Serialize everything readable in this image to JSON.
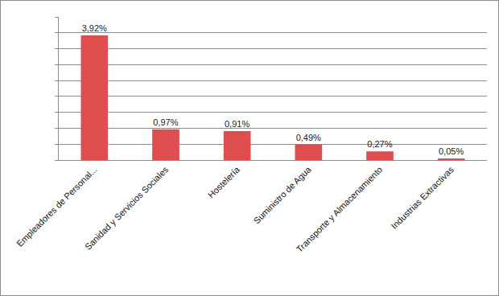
{
  "chart_data": {
    "type": "bar",
    "categories": [
      "Empleadores de Personal...",
      "Sanidad y Servicios Sociales",
      "Hostelería",
      "Suministro de Agua",
      "Transporte y Almacenamiento",
      "Industrias Extractivas"
    ],
    "values": [
      3.92,
      0.97,
      0.91,
      0.49,
      0.27,
      0.05
    ],
    "value_labels": [
      "3,92%",
      "0,97%",
      "0,91%",
      "0,49%",
      "0,27%",
      "0,05%"
    ],
    "color": "#dd4f4f",
    "ylim": [
      0,
      4.5
    ],
    "yticks": [
      0,
      0.5,
      1,
      1.5,
      2,
      2.5,
      3,
      3.5,
      4,
      4.5
    ],
    "grid": true,
    "data_labels": true,
    "tick_labels": "x"
  }
}
